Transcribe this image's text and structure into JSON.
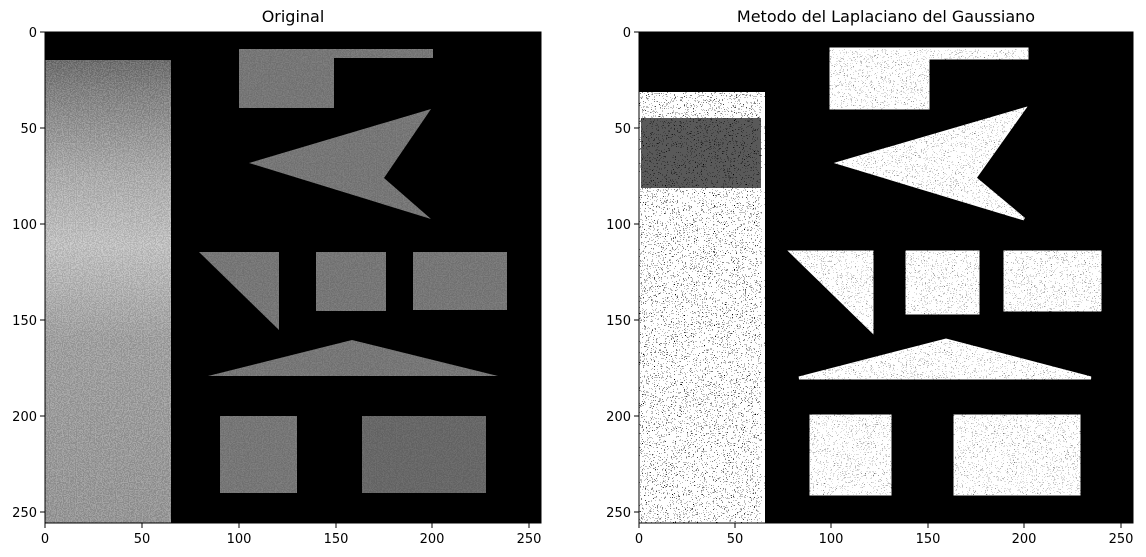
{
  "chart_data": [
    {
      "type": "heatmap",
      "title": "Original",
      "colormap": "gray",
      "xlim": [
        0,
        256
      ],
      "ylim": [
        256,
        0
      ],
      "xticks": [
        "0",
        "50",
        "100",
        "150",
        "200",
        "250"
      ],
      "yticks": [
        "0",
        "50",
        "100",
        "150",
        "200",
        "250"
      ],
      "grid": false
    },
    {
      "type": "heatmap",
      "title": "Metodo del Laplaciano del Gaussiano",
      "colormap": "binary (white on black)",
      "xlim": [
        0,
        256
      ],
      "ylim": [
        256,
        0
      ],
      "xticks": [
        "0",
        "50",
        "100",
        "150",
        "200",
        "250"
      ],
      "yticks": [
        "0",
        "50",
        "100",
        "150",
        "200",
        "250"
      ],
      "grid": false
    }
  ]
}
